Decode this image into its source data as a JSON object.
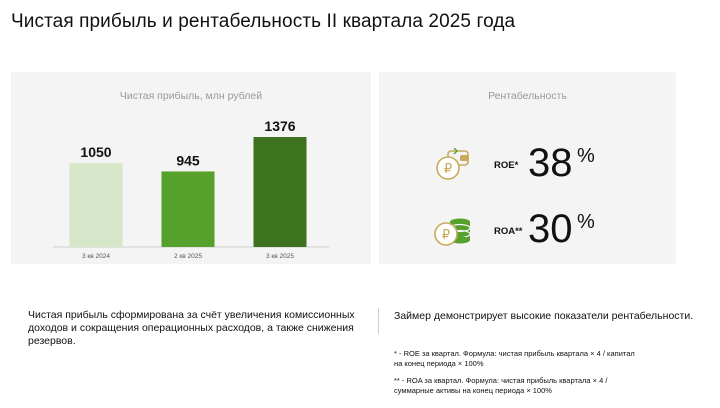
{
  "page": {
    "title": "Чистая прибыль и рентабельность II квартала 2025 года"
  },
  "left_panel": {
    "title": "Чистая прибыль, млн рублей"
  },
  "chart_data": {
    "type": "bar",
    "title": "Чистая прибыль, млн рублей",
    "categories": [
      "3 кв 2024",
      "2 кв 2025",
      "3 кв 2025"
    ],
    "values": [
      1050,
      945,
      1376
    ],
    "data_labels": [
      "1050",
      "945",
      "1376"
    ],
    "colors": [
      "#d5e6c9",
      "#56a12c",
      "#3d731f"
    ],
    "ylim": [
      0,
      1376
    ],
    "grid": false,
    "legend": "none"
  },
  "right_panel": {
    "title": "Рентабельность",
    "roe": {
      "label": "ROE*",
      "value": "38",
      "unit": "%"
    },
    "roa": {
      "label": "ROA**",
      "value": "30",
      "unit": "%"
    }
  },
  "notes": {
    "left_text": "Чистая прибыль сформирована за счёт увеличения комиссионных доходов и сокращения операционных расходов, а также снижения резервов.",
    "right_text": "Займер демонстрирует высокие показатели рентабельности.",
    "footnote_roe_1": "* - ROE за квартал. Формула: чистая прибыль квартала × 4 / капитал",
    "footnote_roe_2": "на конец периода × 100%",
    "footnote_roa_1": "** - ROA за квартал. Формула: чистая прибыль квартала × 4 /",
    "footnote_roa_2": "суммарные активы на конец периода × 100%"
  },
  "icons": {
    "roe": "wallet-coin-icon",
    "roa": "coin-stack-icon",
    "accent": "#c8aa5a"
  }
}
